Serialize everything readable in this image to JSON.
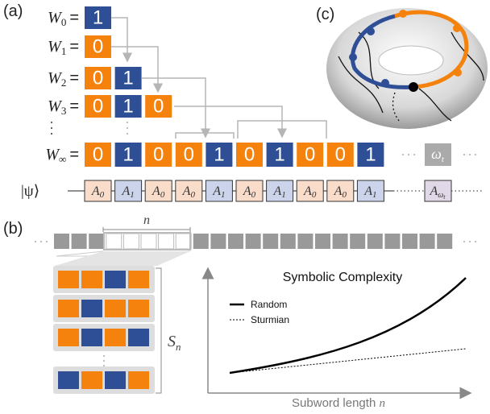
{
  "panels": {
    "a": "(a)",
    "b": "(b)",
    "c": "(c)"
  },
  "sequence": {
    "rows": [
      {
        "symbol": "W",
        "sub": "0",
        "eq": "=",
        "bits": [
          1
        ]
      },
      {
        "symbol": "W",
        "sub": "1",
        "eq": "=",
        "bits": [
          0
        ]
      },
      {
        "symbol": "W",
        "sub": "2",
        "eq": "=",
        "bits": [
          0,
          1
        ]
      },
      {
        "symbol": "W",
        "sub": "3",
        "eq": "=",
        "bits": [
          0,
          1,
          0
        ]
      },
      {
        "symbol": "W",
        "sub": "∞",
        "eq": "=",
        "bits": [
          0,
          1,
          0,
          0,
          1,
          0,
          1,
          0,
          0,
          1
        ]
      }
    ],
    "omega": {
      "symbol": "ω",
      "sub": "t"
    }
  },
  "mps": {
    "state": "|ψ⟩",
    "tensors": [
      {
        "symbol": "A",
        "sub": "0"
      },
      {
        "symbol": "A",
        "sub": "1"
      },
      {
        "symbol": "A",
        "sub": "0"
      },
      {
        "symbol": "A",
        "sub": "0"
      },
      {
        "symbol": "A",
        "sub": "1"
      },
      {
        "symbol": "A",
        "sub": "0"
      },
      {
        "symbol": "A",
        "sub": "1"
      },
      {
        "symbol": "A",
        "sub": "0"
      },
      {
        "symbol": "A",
        "sub": "0"
      },
      {
        "symbol": "A",
        "sub": "1"
      }
    ],
    "last": {
      "symbol": "A",
      "sub": "ω",
      "subsub": "t"
    }
  },
  "window": {
    "label": "n"
  },
  "count": {
    "symbol": "S",
    "sub": "n"
  },
  "plot": {
    "title": "Symbolic Complexity",
    "legend": [
      "Random",
      "Sturmian"
    ],
    "xlabel": {
      "text": "Subword length ",
      "var": "n"
    }
  }
}
